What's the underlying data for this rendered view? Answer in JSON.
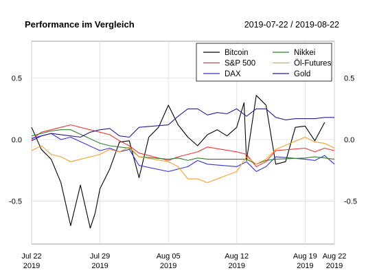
{
  "header": {
    "title": "Performance im Vergleich",
    "date_range": "2019-07-22 / 2019-08-22"
  },
  "chart_data": {
    "type": "line",
    "title": "Performance im Vergleich",
    "subtitle": "2019-07-22 / 2019-08-22",
    "xlabel": "",
    "ylabel": "",
    "xlim": [
      "2019-07-22",
      "2019-08-22"
    ],
    "ylim": [
      -0.85,
      0.8
    ],
    "grid": true,
    "legend_position": "top-right",
    "x_ticks": [
      {
        "date": "2019-07-22",
        "line1": "Jul 22",
        "line2": "2019"
      },
      {
        "date": "2019-07-29",
        "line1": "Jul 29",
        "line2": "2019"
      },
      {
        "date": "2019-08-05",
        "line1": "Aug 05",
        "line2": "2019"
      },
      {
        "date": "2019-08-12",
        "line1": "Aug 12",
        "line2": "2019"
      },
      {
        "date": "2019-08-19",
        "line1": "Aug 19",
        "line2": "2019"
      },
      {
        "date": "2019-08-22",
        "line1": "Aug 22",
        "line2": "2019"
      }
    ],
    "y_ticks": [
      {
        "value": 0.5,
        "label": "0.5"
      },
      {
        "value": 0.0,
        "label": "0.0"
      },
      {
        "value": -0.5,
        "label": "-0.5"
      }
    ],
    "series": [
      {
        "name": "Bitcoin",
        "color": "#000000",
        "points": [
          [
            "2019-07-22",
            0.1
          ],
          [
            "2019-07-23",
            -0.08
          ],
          [
            "2019-07-24",
            -0.16
          ],
          [
            "2019-07-25",
            -0.35
          ],
          [
            "2019-07-26",
            -0.7
          ],
          [
            "2019-07-27",
            -0.37
          ],
          [
            "2019-07-28",
            -0.72
          ],
          [
            "2019-07-28T12:00",
            -0.6
          ],
          [
            "2019-07-29",
            -0.4
          ],
          [
            "2019-07-30",
            -0.24
          ],
          [
            "2019-07-31",
            -0.02
          ],
          [
            "2019-08-01",
            -0.01
          ],
          [
            "2019-08-02",
            -0.31
          ],
          [
            "2019-08-03",
            0.02
          ],
          [
            "2019-08-04",
            0.1
          ],
          [
            "2019-08-05",
            0.28
          ],
          [
            "2019-08-06",
            0.12
          ],
          [
            "2019-08-07",
            0.02
          ],
          [
            "2019-08-08",
            -0.05
          ],
          [
            "2019-08-09",
            0.04
          ],
          [
            "2019-08-10",
            0.08
          ],
          [
            "2019-08-11",
            0.03
          ],
          [
            "2019-08-12",
            0.1
          ],
          [
            "2019-08-12T18:00",
            0.3
          ],
          [
            "2019-08-13",
            -0.17
          ],
          [
            "2019-08-14",
            0.36
          ],
          [
            "2019-08-15",
            0.28
          ],
          [
            "2019-08-16",
            -0.2
          ],
          [
            "2019-08-17",
            -0.18
          ],
          [
            "2019-08-18",
            0.1
          ],
          [
            "2019-08-19",
            0.11
          ],
          [
            "2019-08-20",
            -0.01
          ],
          [
            "2019-08-21",
            0.14
          ]
        ]
      },
      {
        "name": "S&P 500",
        "color": "#ee3333",
        "points": [
          [
            "2019-07-22",
            0.0
          ],
          [
            "2019-07-23",
            0.06
          ],
          [
            "2019-07-24",
            0.08
          ],
          [
            "2019-07-25",
            0.1
          ],
          [
            "2019-07-26",
            0.12
          ],
          [
            "2019-07-29",
            0.06
          ],
          [
            "2019-07-30",
            0.04
          ],
          [
            "2019-07-31",
            -0.01
          ],
          [
            "2019-08-01",
            -0.05
          ],
          [
            "2019-08-02",
            -0.11
          ],
          [
            "2019-08-05",
            -0.17
          ],
          [
            "2019-08-06",
            -0.14
          ],
          [
            "2019-08-07",
            -0.12
          ],
          [
            "2019-08-08",
            -0.1
          ],
          [
            "2019-08-09",
            -0.06
          ],
          [
            "2019-08-12",
            -0.1
          ],
          [
            "2019-08-13",
            -0.12
          ],
          [
            "2019-08-14",
            -0.22
          ],
          [
            "2019-08-15",
            -0.18
          ],
          [
            "2019-08-16",
            -0.09
          ],
          [
            "2019-08-19",
            -0.07
          ],
          [
            "2019-08-20",
            -0.1
          ],
          [
            "2019-08-21",
            -0.07
          ],
          [
            "2019-08-22",
            -0.09
          ]
        ]
      },
      {
        "name": "DAX",
        "color": "#3333dd",
        "points": [
          [
            "2019-07-22",
            0.01
          ],
          [
            "2019-07-23",
            0.03
          ],
          [
            "2019-07-24",
            0.05
          ],
          [
            "2019-07-25",
            0.0
          ],
          [
            "2019-07-26",
            0.02
          ],
          [
            "2019-07-29",
            -0.09
          ],
          [
            "2019-07-30",
            -0.07
          ],
          [
            "2019-07-31",
            -0.1
          ],
          [
            "2019-08-01",
            -0.08
          ],
          [
            "2019-08-02",
            -0.21
          ],
          [
            "2019-08-05",
            -0.26
          ],
          [
            "2019-08-06",
            -0.24
          ],
          [
            "2019-08-07",
            -0.22
          ],
          [
            "2019-08-08",
            -0.17
          ],
          [
            "2019-08-09",
            -0.2
          ],
          [
            "2019-08-12",
            -0.22
          ],
          [
            "2019-08-13",
            -0.18
          ],
          [
            "2019-08-14",
            -0.26
          ],
          [
            "2019-08-15",
            -0.22
          ],
          [
            "2019-08-16",
            -0.14
          ],
          [
            "2019-08-19",
            -0.16
          ],
          [
            "2019-08-20",
            -0.17
          ],
          [
            "2019-08-21",
            -0.13
          ],
          [
            "2019-08-22",
            -0.2
          ]
        ]
      },
      {
        "name": "Nikkei",
        "color": "#2e7d2e",
        "points": [
          [
            "2019-07-22",
            0.03
          ],
          [
            "2019-07-23",
            0.05
          ],
          [
            "2019-07-24",
            0.07
          ],
          [
            "2019-07-25",
            0.08
          ],
          [
            "2019-07-26",
            0.08
          ],
          [
            "2019-07-29",
            -0.03
          ],
          [
            "2019-07-30",
            -0.05
          ],
          [
            "2019-07-31",
            -0.06
          ],
          [
            "2019-08-01",
            -0.07
          ],
          [
            "2019-08-02",
            -0.14
          ],
          [
            "2019-08-05",
            -0.16
          ],
          [
            "2019-08-06",
            -0.15
          ],
          [
            "2019-08-07",
            -0.17
          ],
          [
            "2019-08-08",
            -0.15
          ],
          [
            "2019-08-09",
            -0.16
          ],
          [
            "2019-08-13",
            -0.16
          ],
          [
            "2019-08-14",
            -0.2
          ],
          [
            "2019-08-15",
            -0.17
          ],
          [
            "2019-08-16",
            -0.16
          ],
          [
            "2019-08-19",
            -0.15
          ],
          [
            "2019-08-20",
            -0.14
          ],
          [
            "2019-08-21",
            -0.15
          ],
          [
            "2019-08-22",
            -0.16
          ]
        ]
      },
      {
        "name": "Öl-Futures",
        "color": "#f5a033",
        "points": [
          [
            "2019-07-22",
            -0.09
          ],
          [
            "2019-07-23",
            -0.05
          ],
          [
            "2019-07-24",
            -0.12
          ],
          [
            "2019-07-25",
            -0.14
          ],
          [
            "2019-07-26",
            -0.18
          ],
          [
            "2019-07-29",
            -0.12
          ],
          [
            "2019-07-30",
            -0.08
          ],
          [
            "2019-07-31",
            -0.1
          ],
          [
            "2019-08-01",
            -0.06
          ],
          [
            "2019-08-02",
            -0.14
          ],
          [
            "2019-08-05",
            -0.18
          ],
          [
            "2019-08-06",
            -0.22
          ],
          [
            "2019-08-07",
            -0.32
          ],
          [
            "2019-08-08",
            -0.32
          ],
          [
            "2019-08-09",
            -0.35
          ],
          [
            "2019-08-12",
            -0.26
          ],
          [
            "2019-08-13",
            -0.14
          ],
          [
            "2019-08-14",
            -0.2
          ],
          [
            "2019-08-15",
            -0.16
          ],
          [
            "2019-08-16",
            -0.08
          ],
          [
            "2019-08-19",
            0.02
          ],
          [
            "2019-08-20",
            -0.02
          ],
          [
            "2019-08-21",
            -0.03
          ],
          [
            "2019-08-22",
            -0.07
          ]
        ]
      },
      {
        "name": "Gold",
        "color": "#2a1a8a",
        "points": [
          [
            "2019-07-22",
            -0.01
          ],
          [
            "2019-07-23",
            0.03
          ],
          [
            "2019-07-24",
            0.05
          ],
          [
            "2019-07-25",
            0.04
          ],
          [
            "2019-07-26",
            0.03
          ],
          [
            "2019-07-27",
            0.02
          ],
          [
            "2019-07-28",
            0.06
          ],
          [
            "2019-07-29",
            0.08
          ],
          [
            "2019-07-30",
            0.09
          ],
          [
            "2019-07-31",
            0.03
          ],
          [
            "2019-08-01",
            0.02
          ],
          [
            "2019-08-02",
            0.1
          ],
          [
            "2019-08-05",
            0.12
          ],
          [
            "2019-08-06",
            0.19
          ],
          [
            "2019-08-07",
            0.25
          ],
          [
            "2019-08-08",
            0.25
          ],
          [
            "2019-08-09",
            0.2
          ],
          [
            "2019-08-10",
            0.22
          ],
          [
            "2019-08-11",
            0.21
          ],
          [
            "2019-08-12",
            0.25
          ],
          [
            "2019-08-13",
            0.19
          ],
          [
            "2019-08-14",
            0.25
          ],
          [
            "2019-08-15",
            0.25
          ],
          [
            "2019-08-16",
            0.18
          ],
          [
            "2019-08-17",
            0.16
          ],
          [
            "2019-08-18",
            0.17
          ],
          [
            "2019-08-19",
            0.17
          ],
          [
            "2019-08-20",
            0.17
          ],
          [
            "2019-08-21",
            0.18
          ],
          [
            "2019-08-22",
            0.18
          ]
        ]
      }
    ]
  }
}
